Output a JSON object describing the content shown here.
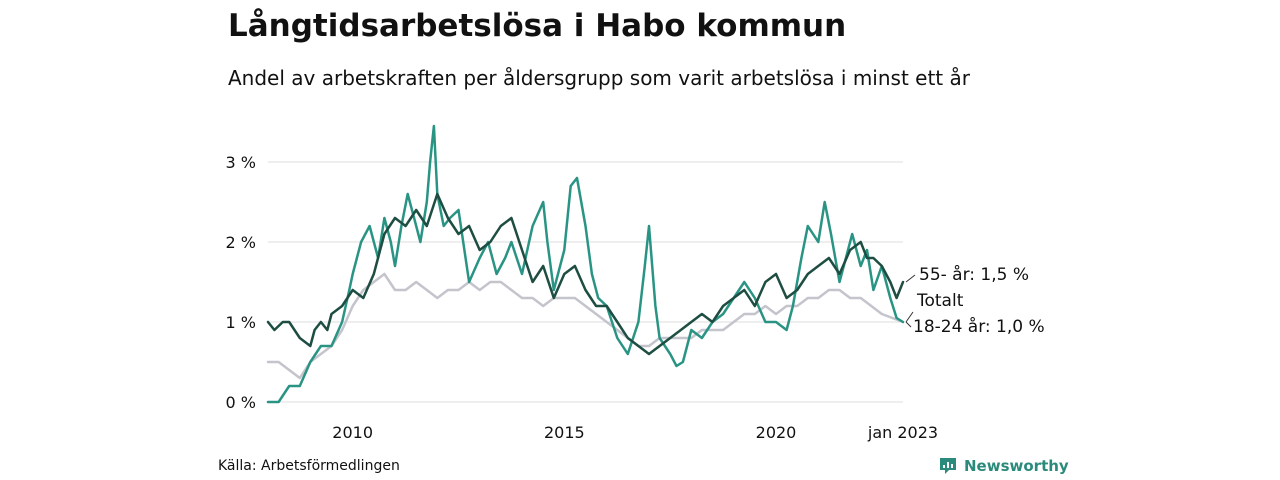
{
  "title": "Långtidsarbetslösa i Habo kommun",
  "subtitle": "Andel av arbetskraften per åldersgrupp som varit arbetslösa i minst ett år",
  "source": "Källa: Arbetsförmedlingen",
  "brand": {
    "name": "Newsworthy",
    "icon": "newsworthy-logo-icon",
    "color": "#2a8a7b"
  },
  "chart_data": {
    "type": "line",
    "x_label_date": "jan 2023",
    "x_ticks": [
      {
        "label": "2010",
        "x": 2010.0
      },
      {
        "label": "2015",
        "x": 2015.0
      },
      {
        "label": "2020",
        "x": 2020.0
      },
      {
        "label": "jan 2023",
        "x": 2023.0
      }
    ],
    "y_ticks": [
      {
        "label": "0 %",
        "y": 0
      },
      {
        "label": "1 %",
        "y": 1
      },
      {
        "label": "2 %",
        "y": 2
      },
      {
        "label": "3 %",
        "y": 3
      }
    ],
    "xlim": [
      2008.0,
      2023.0
    ],
    "ylim": [
      0,
      3.5
    ],
    "grid": "horizontal",
    "series": [
      {
        "name": "Totalt",
        "label": "Totalt",
        "color": "#c4c4cc",
        "points": [
          [
            2008.0,
            0.5
          ],
          [
            2008.25,
            0.5
          ],
          [
            2008.5,
            0.4
          ],
          [
            2008.75,
            0.3
          ],
          [
            2009.0,
            0.5
          ],
          [
            2009.25,
            0.6
          ],
          [
            2009.5,
            0.7
          ],
          [
            2009.75,
            0.9
          ],
          [
            2010.0,
            1.2
          ],
          [
            2010.25,
            1.4
          ],
          [
            2010.5,
            1.5
          ],
          [
            2010.75,
            1.6
          ],
          [
            2011.0,
            1.4
          ],
          [
            2011.25,
            1.4
          ],
          [
            2011.5,
            1.5
          ],
          [
            2011.75,
            1.4
          ],
          [
            2012.0,
            1.3
          ],
          [
            2012.25,
            1.4
          ],
          [
            2012.5,
            1.4
          ],
          [
            2012.75,
            1.5
          ],
          [
            2013.0,
            1.4
          ],
          [
            2013.25,
            1.5
          ],
          [
            2013.5,
            1.5
          ],
          [
            2013.75,
            1.4
          ],
          [
            2014.0,
            1.3
          ],
          [
            2014.25,
            1.3
          ],
          [
            2014.5,
            1.2
          ],
          [
            2014.75,
            1.3
          ],
          [
            2015.0,
            1.3
          ],
          [
            2015.25,
            1.3
          ],
          [
            2015.5,
            1.2
          ],
          [
            2015.75,
            1.1
          ],
          [
            2016.0,
            1.0
          ],
          [
            2016.25,
            0.9
          ],
          [
            2016.5,
            0.8
          ],
          [
            2016.75,
            0.7
          ],
          [
            2017.0,
            0.7
          ],
          [
            2017.25,
            0.8
          ],
          [
            2017.5,
            0.8
          ],
          [
            2017.75,
            0.8
          ],
          [
            2018.0,
            0.8
          ],
          [
            2018.25,
            0.9
          ],
          [
            2018.5,
            0.9
          ],
          [
            2018.75,
            0.9
          ],
          [
            2019.0,
            1.0
          ],
          [
            2019.25,
            1.1
          ],
          [
            2019.5,
            1.1
          ],
          [
            2019.75,
            1.2
          ],
          [
            2020.0,
            1.1
          ],
          [
            2020.25,
            1.2
          ],
          [
            2020.5,
            1.2
          ],
          [
            2020.75,
            1.3
          ],
          [
            2021.0,
            1.3
          ],
          [
            2021.25,
            1.4
          ],
          [
            2021.5,
            1.4
          ],
          [
            2021.75,
            1.3
          ],
          [
            2022.0,
            1.3
          ],
          [
            2022.25,
            1.2
          ],
          [
            2022.5,
            1.1
          ],
          [
            2022.75,
            1.05
          ],
          [
            2023.0,
            1.0
          ]
        ]
      },
      {
        "name": "18-24 år",
        "label": "18-24 år: 1,0 %",
        "color": "#2a9484",
        "points": [
          [
            2008.0,
            0.0
          ],
          [
            2008.25,
            0.0
          ],
          [
            2008.5,
            0.2
          ],
          [
            2008.75,
            0.2
          ],
          [
            2009.0,
            0.5
          ],
          [
            2009.25,
            0.7
          ],
          [
            2009.5,
            0.7
          ],
          [
            2009.75,
            1.0
          ],
          [
            2009.92,
            1.4
          ],
          [
            2010.0,
            1.6
          ],
          [
            2010.2,
            2.0
          ],
          [
            2010.4,
            2.2
          ],
          [
            2010.6,
            1.8
          ],
          [
            2010.75,
            2.3
          ],
          [
            2010.9,
            2.0
          ],
          [
            2011.0,
            1.7
          ],
          [
            2011.15,
            2.2
          ],
          [
            2011.3,
            2.6
          ],
          [
            2011.45,
            2.3
          ],
          [
            2011.6,
            2.0
          ],
          [
            2011.75,
            2.5
          ],
          [
            2011.83,
            3.0
          ],
          [
            2011.92,
            3.45
          ],
          [
            2012.0,
            2.6
          ],
          [
            2012.15,
            2.2
          ],
          [
            2012.3,
            2.3
          ],
          [
            2012.5,
            2.4
          ],
          [
            2012.75,
            1.5
          ],
          [
            2013.0,
            1.8
          ],
          [
            2013.2,
            2.0
          ],
          [
            2013.4,
            1.6
          ],
          [
            2013.6,
            1.8
          ],
          [
            2013.75,
            2.0
          ],
          [
            2014.0,
            1.6
          ],
          [
            2014.25,
            2.2
          ],
          [
            2014.5,
            2.5
          ],
          [
            2014.6,
            2.0
          ],
          [
            2014.75,
            1.4
          ],
          [
            2015.0,
            1.9
          ],
          [
            2015.15,
            2.7
          ],
          [
            2015.3,
            2.8
          ],
          [
            2015.5,
            2.2
          ],
          [
            2015.65,
            1.6
          ],
          [
            2015.8,
            1.3
          ],
          [
            2016.0,
            1.2
          ],
          [
            2016.25,
            0.8
          ],
          [
            2016.5,
            0.6
          ],
          [
            2016.75,
            1.0
          ],
          [
            2016.9,
            1.7
          ],
          [
            2017.0,
            2.2
          ],
          [
            2017.15,
            1.2
          ],
          [
            2017.25,
            0.8
          ],
          [
            2017.5,
            0.6
          ],
          [
            2017.65,
            0.45
          ],
          [
            2017.8,
            0.5
          ],
          [
            2018.0,
            0.9
          ],
          [
            2018.25,
            0.8
          ],
          [
            2018.5,
            1.0
          ],
          [
            2018.75,
            1.1
          ],
          [
            2019.0,
            1.3
          ],
          [
            2019.25,
            1.5
          ],
          [
            2019.5,
            1.3
          ],
          [
            2019.75,
            1.0
          ],
          [
            2020.0,
            1.0
          ],
          [
            2020.25,
            0.9
          ],
          [
            2020.4,
            1.2
          ],
          [
            2020.6,
            1.8
          ],
          [
            2020.75,
            2.2
          ],
          [
            2021.0,
            2.0
          ],
          [
            2021.15,
            2.5
          ],
          [
            2021.3,
            2.1
          ],
          [
            2021.5,
            1.5
          ],
          [
            2021.65,
            1.8
          ],
          [
            2021.8,
            2.1
          ],
          [
            2022.0,
            1.7
          ],
          [
            2022.15,
            1.9
          ],
          [
            2022.3,
            1.4
          ],
          [
            2022.5,
            1.7
          ],
          [
            2022.7,
            1.3
          ],
          [
            2022.85,
            1.05
          ],
          [
            2023.0,
            1.0
          ]
        ]
      },
      {
        "name": "55- år",
        "label": "55- år: 1,5 %",
        "color": "#1e4d42",
        "points": [
          [
            2008.0,
            1.0
          ],
          [
            2008.15,
            0.9
          ],
          [
            2008.35,
            1.0
          ],
          [
            2008.5,
            1.0
          ],
          [
            2008.75,
            0.8
          ],
          [
            2009.0,
            0.7
          ],
          [
            2009.1,
            0.9
          ],
          [
            2009.25,
            1.0
          ],
          [
            2009.4,
            0.9
          ],
          [
            2009.5,
            1.1
          ],
          [
            2009.75,
            1.2
          ],
          [
            2010.0,
            1.4
          ],
          [
            2010.25,
            1.3
          ],
          [
            2010.5,
            1.6
          ],
          [
            2010.75,
            2.1
          ],
          [
            2011.0,
            2.3
          ],
          [
            2011.25,
            2.2
          ],
          [
            2011.5,
            2.4
          ],
          [
            2011.75,
            2.2
          ],
          [
            2012.0,
            2.6
          ],
          [
            2012.25,
            2.3
          ],
          [
            2012.5,
            2.1
          ],
          [
            2012.75,
            2.2
          ],
          [
            2013.0,
            1.9
          ],
          [
            2013.25,
            2.0
          ],
          [
            2013.5,
            2.2
          ],
          [
            2013.75,
            2.3
          ],
          [
            2014.0,
            1.9
          ],
          [
            2014.25,
            1.5
          ],
          [
            2014.5,
            1.7
          ],
          [
            2014.75,
            1.3
          ],
          [
            2015.0,
            1.6
          ],
          [
            2015.25,
            1.7
          ],
          [
            2015.5,
            1.4
          ],
          [
            2015.75,
            1.2
          ],
          [
            2016.0,
            1.2
          ],
          [
            2016.25,
            1.0
          ],
          [
            2016.5,
            0.8
          ],
          [
            2016.75,
            0.7
          ],
          [
            2017.0,
            0.6
          ],
          [
            2017.25,
            0.7
          ],
          [
            2017.5,
            0.8
          ],
          [
            2017.75,
            0.9
          ],
          [
            2018.0,
            1.0
          ],
          [
            2018.25,
            1.1
          ],
          [
            2018.5,
            1.0
          ],
          [
            2018.75,
            1.2
          ],
          [
            2019.0,
            1.3
          ],
          [
            2019.25,
            1.4
          ],
          [
            2019.5,
            1.2
          ],
          [
            2019.75,
            1.5
          ],
          [
            2020.0,
            1.6
          ],
          [
            2020.25,
            1.3
          ],
          [
            2020.5,
            1.4
          ],
          [
            2020.75,
            1.6
          ],
          [
            2021.0,
            1.7
          ],
          [
            2021.25,
            1.8
          ],
          [
            2021.5,
            1.6
          ],
          [
            2021.75,
            1.9
          ],
          [
            2022.0,
            2.0
          ],
          [
            2022.15,
            1.8
          ],
          [
            2022.3,
            1.8
          ],
          [
            2022.5,
            1.7
          ],
          [
            2022.7,
            1.5
          ],
          [
            2022.85,
            1.3
          ],
          [
            2023.0,
            1.5
          ]
        ]
      }
    ]
  }
}
